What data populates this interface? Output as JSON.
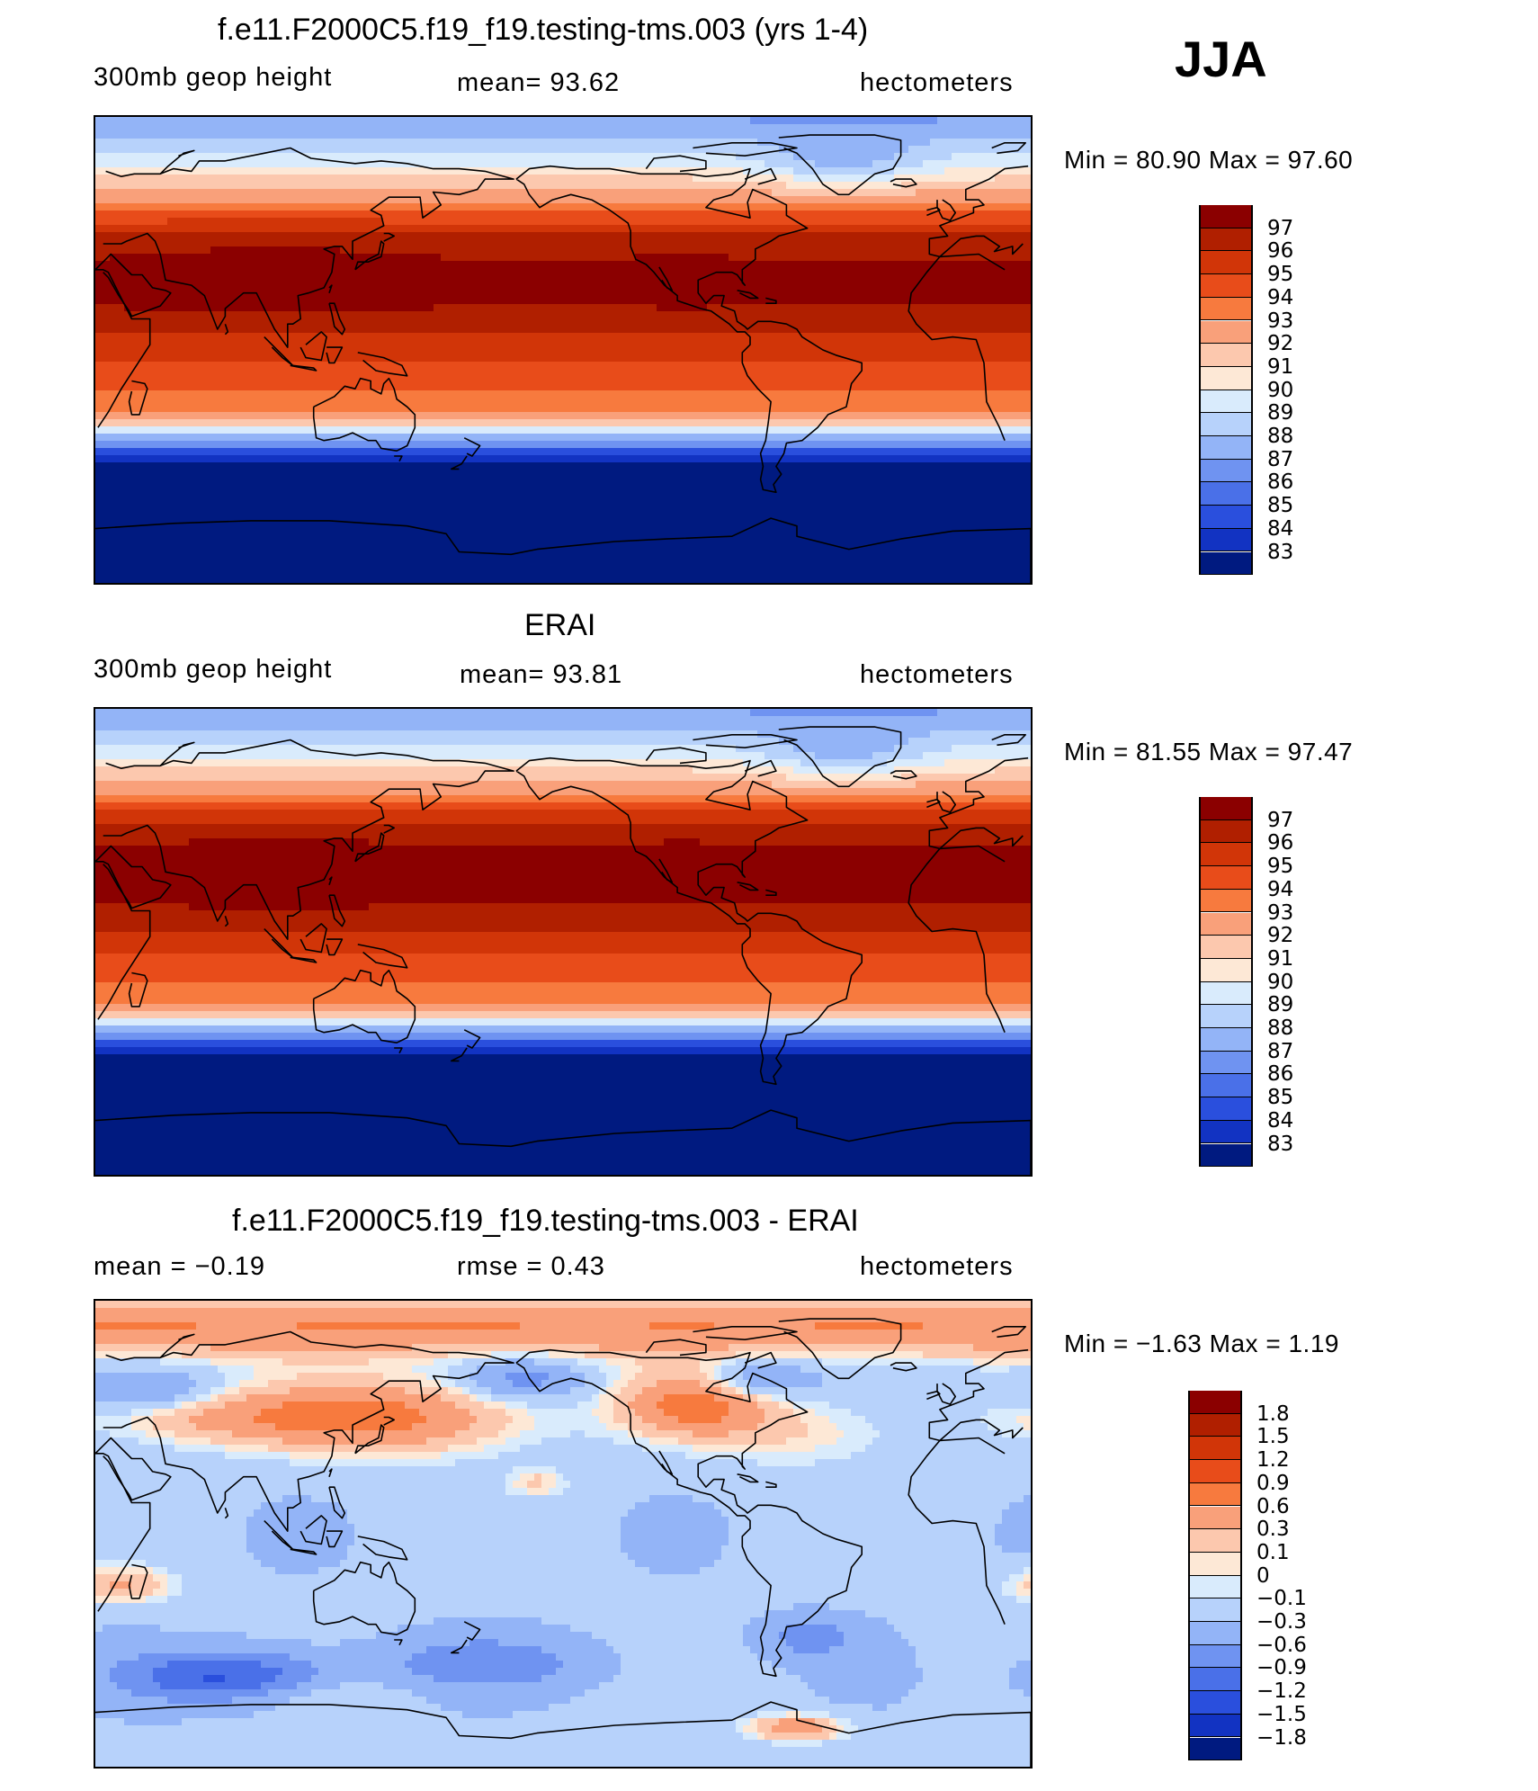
{
  "season": "JJA",
  "panels": [
    {
      "id": "model",
      "title": "f.e11.F2000C5.f19_f19.testing-tms.003 (yrs 1-4)",
      "left_label": "300mb  geop  height",
      "center_label": "mean=   93.62",
      "right_label": "hectometers",
      "minmax": "Min  =    80.90  Max  =    97.60",
      "field": "abs",
      "colorbar": {
        "levels": [
          "97",
          "96",
          "95",
          "94",
          "93",
          "92",
          "91",
          "90",
          "89",
          "88",
          "87",
          "86",
          "85",
          "84",
          "83"
        ],
        "colors": [
          "#8b0000",
          "#b01f00",
          "#d13508",
          "#e84c1a",
          "#f77a3e",
          "#f9a07a",
          "#fcc8ae",
          "#fde8d6",
          "#d9ebfc",
          "#b7d2fb",
          "#93b4f7",
          "#6f93f1",
          "#4a70e8",
          "#2a4fdd",
          "#1233c2",
          "#001a80"
        ]
      }
    },
    {
      "id": "obs",
      "title": "ERAI",
      "left_label": "300mb  geop  height",
      "center_label": "mean=   93.81",
      "right_label": "hectometers",
      "minmax": "Min  =    81.55  Max  =    97.47",
      "field": "abs",
      "colorbar": {
        "levels": [
          "97",
          "96",
          "95",
          "94",
          "93",
          "92",
          "91",
          "90",
          "89",
          "88",
          "87",
          "86",
          "85",
          "84",
          "83"
        ],
        "colors": [
          "#8b0000",
          "#b01f00",
          "#d13508",
          "#e84c1a",
          "#f77a3e",
          "#f9a07a",
          "#fcc8ae",
          "#fde8d6",
          "#d9ebfc",
          "#b7d2fb",
          "#93b4f7",
          "#6f93f1",
          "#4a70e8",
          "#2a4fdd",
          "#1233c2",
          "#001a80"
        ]
      }
    },
    {
      "id": "diff",
      "title": "f.e11.F2000C5.f19_f19.testing-tms.003 - ERAI",
      "left_label": "mean  =     −0.19",
      "center_label": "rmse  =     0.43",
      "right_label": "hectometers",
      "minmax": "Min  =    −1.63  Max  =      1.19",
      "field": "diff",
      "colorbar": {
        "levels": [
          "1.8",
          "1.5",
          "1.2",
          "0.9",
          "0.6",
          "0.3",
          "0.1",
          "0",
          "−0.1",
          "−0.3",
          "−0.6",
          "−0.9",
          "−1.2",
          "−1.5",
          "−1.8"
        ],
        "colors": [
          "#8b0000",
          "#b01f00",
          "#d13508",
          "#e84c1a",
          "#f77a3e",
          "#f9a07a",
          "#fcc8ae",
          "#fde8d6",
          "#d9ebfc",
          "#b7d2fb",
          "#93b4f7",
          "#6f93f1",
          "#4a70e8",
          "#2a4fdd",
          "#1233c2",
          "#001a80"
        ]
      }
    }
  ]
}
